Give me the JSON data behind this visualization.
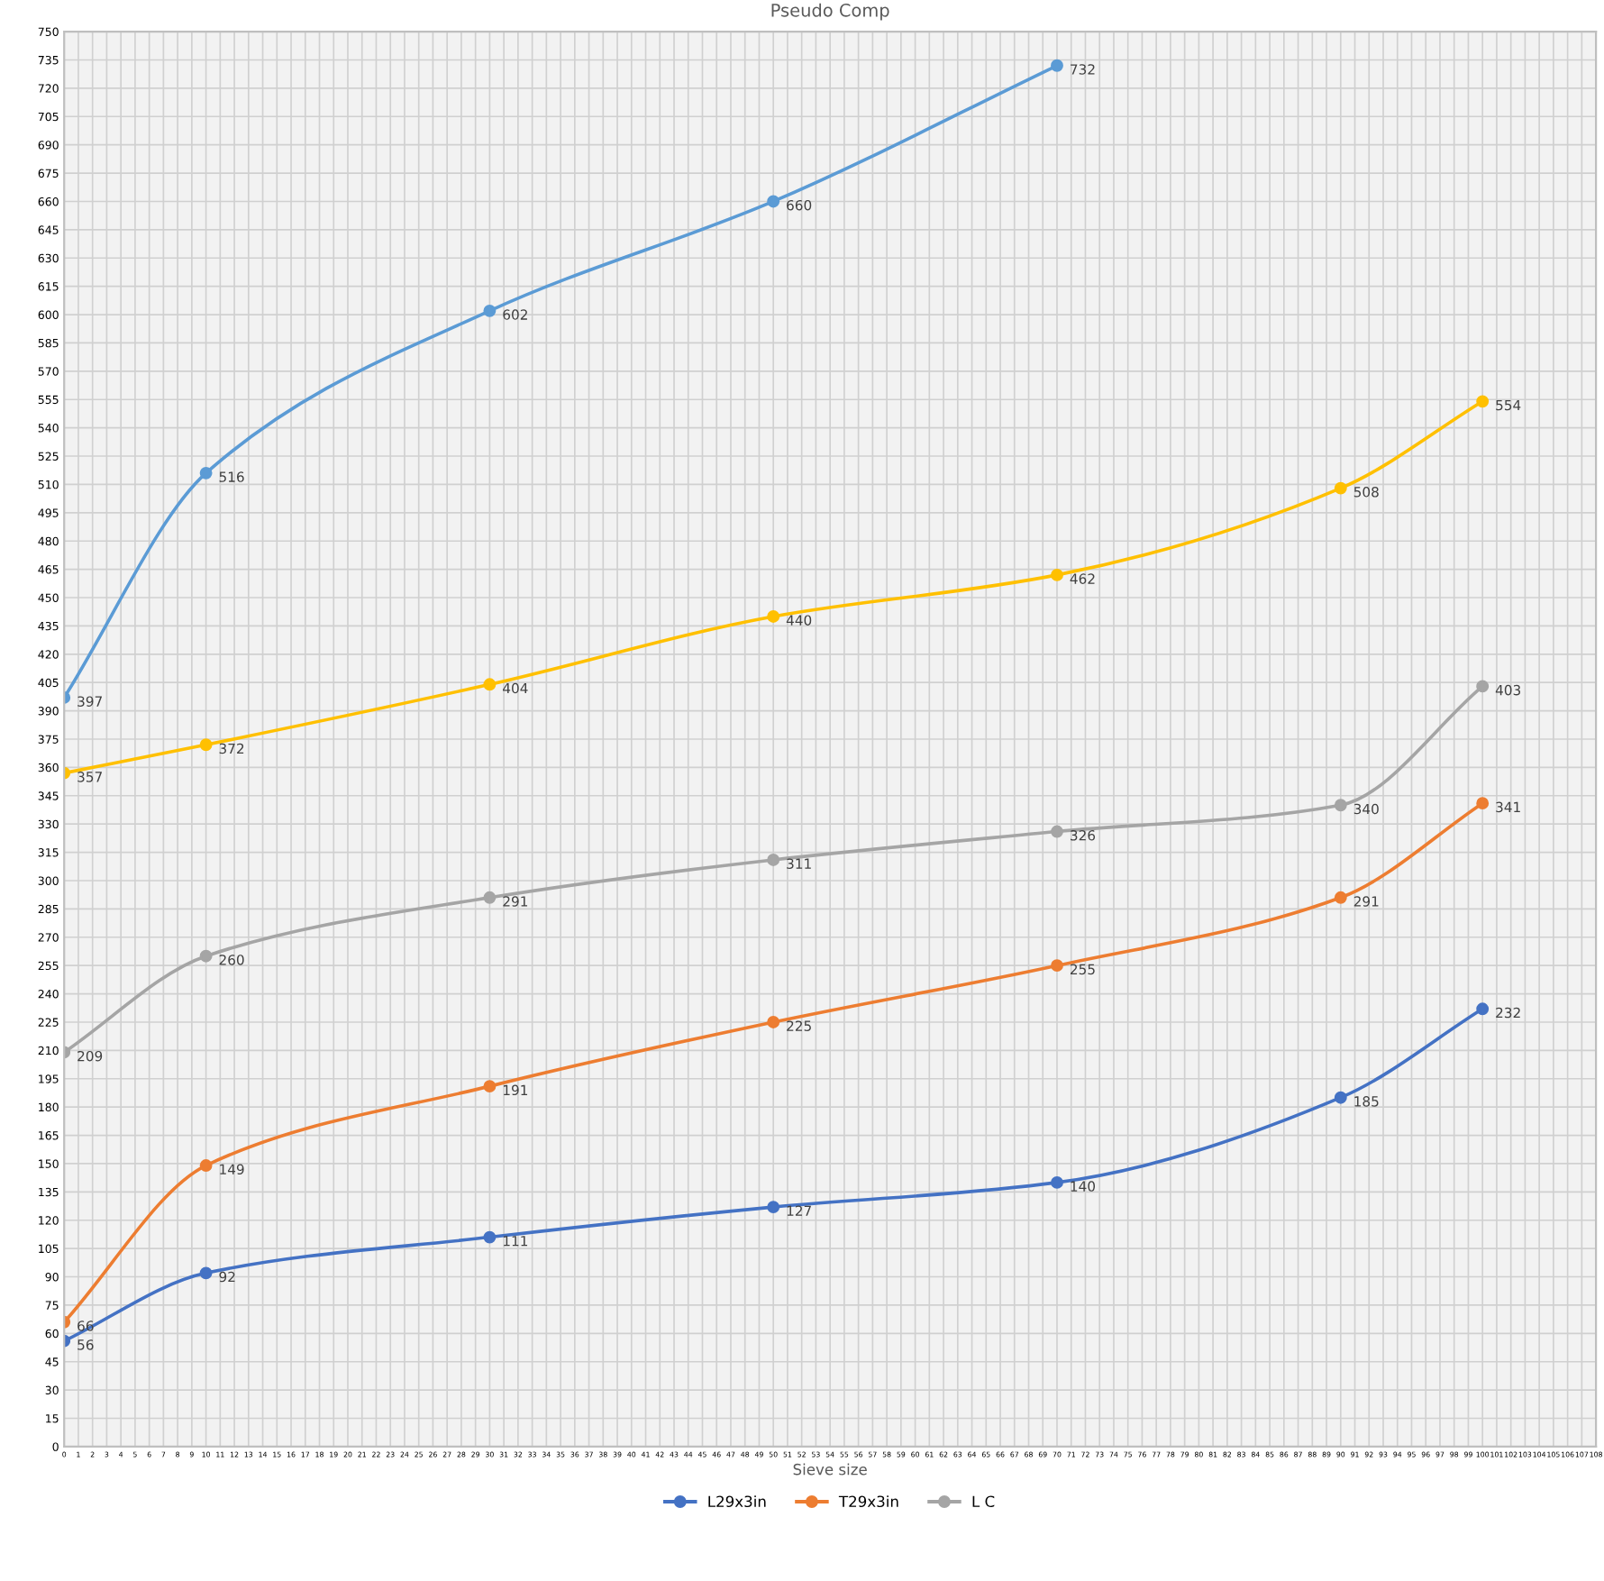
{
  "chart_data": {
    "type": "line",
    "title": "Pseudo Comp",
    "xlabel": "Sieve size",
    "xlim": [
      0,
      108
    ],
    "xticks": [
      0,
      1,
      2,
      3,
      4,
      5,
      6,
      7,
      8,
      9,
      10,
      11,
      12,
      13,
      14,
      15,
      16,
      17,
      18,
      19,
      20,
      21,
      22,
      23,
      24,
      25,
      26,
      27,
      28,
      29,
      30,
      31,
      32,
      33,
      34,
      35,
      36,
      37,
      38,
      39,
      40,
      41,
      42,
      43,
      44,
      45,
      46,
      47,
      48,
      49,
      50,
      51,
      52,
      53,
      54,
      55,
      56,
      57,
      58,
      59,
      60,
      61,
      62,
      63,
      64,
      65,
      66,
      67,
      68,
      69,
      70,
      71,
      72,
      73,
      74,
      75,
      76,
      77,
      78,
      79,
      80,
      81,
      82,
      83,
      84,
      85,
      86,
      87,
      88,
      89,
      90,
      91,
      92,
      93,
      94,
      95,
      96,
      97,
      98,
      99,
      100,
      101,
      102,
      103,
      104,
      105,
      106,
      107,
      108
    ],
    "ylim": [
      0,
      750
    ],
    "yticks": [
      0,
      15,
      30,
      45,
      60,
      75,
      90,
      105,
      120,
      135,
      150,
      165,
      180,
      195,
      210,
      225,
      240,
      255,
      270,
      285,
      300,
      315,
      330,
      345,
      360,
      375,
      390,
      405,
      420,
      435,
      450,
      465,
      480,
      495,
      510,
      525,
      540,
      555,
      570,
      585,
      600,
      615,
      630,
      645,
      660,
      675,
      690,
      705,
      720,
      735,
      750
    ],
    "grid": true,
    "data_labels": true,
    "legend": "bottom",
    "marker": "circle",
    "line_style": "solid",
    "series": [
      {
        "name": "L29x3in",
        "color": "#4472c4",
        "x": [
          0,
          10,
          30,
          50,
          70,
          90,
          100
        ],
        "values": [
          56,
          92,
          111,
          127,
          140,
          185,
          232
        ]
      },
      {
        "name": "T29x3in",
        "color": "#ed7d31",
        "x": [
          0,
          10,
          30,
          50,
          70,
          90,
          100
        ],
        "values": [
          66,
          149,
          191,
          225,
          255,
          291,
          341
        ]
      },
      {
        "name": "L C",
        "color": "#a5a5a5",
        "x": [
          0,
          10,
          30,
          50,
          70,
          90,
          100
        ],
        "values": [
          209,
          260,
          291,
          311,
          326,
          340,
          403
        ]
      },
      {
        "color": "#ffc000",
        "x": [
          0,
          10,
          30,
          50,
          70,
          90,
          100
        ],
        "values": [
          357,
          372,
          404,
          440,
          462,
          508,
          554
        ]
      },
      {
        "color": "#5b9bd5",
        "x": [
          0,
          10,
          30,
          50,
          70
        ],
        "values": [
          397,
          516,
          602,
          660,
          732
        ]
      }
    ]
  }
}
